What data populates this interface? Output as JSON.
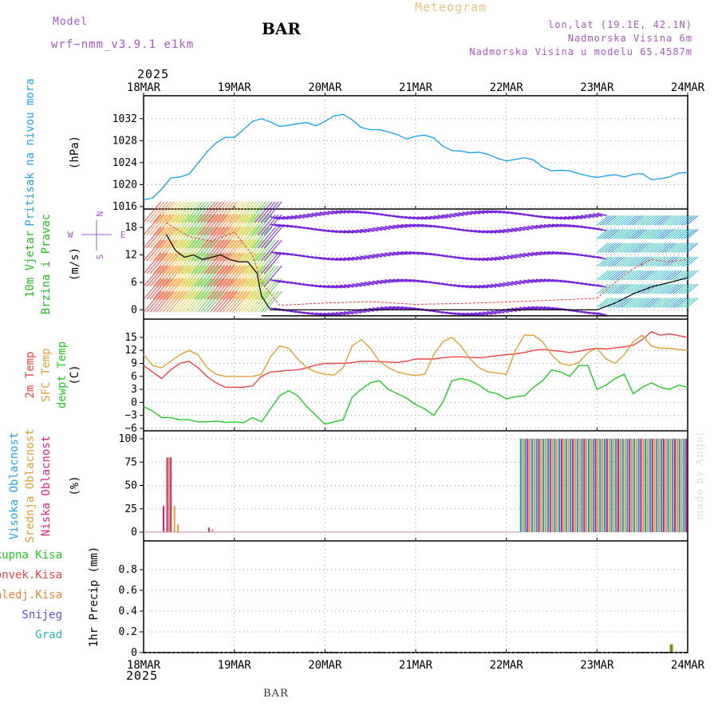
{
  "header": {
    "meteogram": "Meteogram",
    "station": "BAR",
    "model_label": "Model",
    "model_name": "wrf−nmm_v3.9.1  e1km",
    "lonlat": "lon,lat (19.1E, 42.1N)",
    "elevation": "Nadmorska Visina 6m",
    "model_elevation": "Nadmorska Visina u modelu 65.4587m",
    "year_top": "2025",
    "year_bottom": "2025",
    "footer_station": "BAR",
    "credit": "made by Angel"
  },
  "colors": {
    "pressure": "#1ea7e6",
    "temp2m": "#ee4444",
    "sfc": "#e0a030",
    "dewpt": "#22cc22",
    "high_cloud": "#1a9ad6",
    "mid_cloud": "#e0a030",
    "low_cloud": "#cc2288",
    "wind_label": "#22bb22",
    "cloud_label_high": "#1ea7e6",
    "cloud_label_mid": "#e0a030",
    "cloud_label_low": "#dd2288",
    "model_color": "#aa55cc"
  },
  "chart_data": [
    {
      "type": "line",
      "panel": "pressure",
      "ylabel_lines": [
        "Pritisak na nivou mora"
      ],
      "unit": "(hPa)",
      "x_ticks": [
        "18MAR",
        "19MAR",
        "20MAR",
        "21MAR",
        "22MAR",
        "23MAR",
        "24MAR"
      ],
      "ylim": [
        1016,
        1034
      ],
      "y_ticks": [
        1016,
        1020,
        1024,
        1028,
        1032
      ],
      "grid": true,
      "series": [
        {
          "color_key": "pressure",
          "x": [
            0,
            0.1,
            0.2,
            0.3,
            0.4,
            0.5,
            0.6,
            0.7,
            0.8,
            0.9,
            1.0,
            1.1,
            1.2,
            1.3,
            1.4,
            1.5,
            1.6,
            1.7,
            1.8,
            1.9,
            2.0,
            2.1,
            2.2,
            2.3,
            2.4,
            2.5,
            2.6,
            2.7,
            2.8,
            2.9,
            3.0,
            3.1,
            3.2,
            3.3,
            3.4,
            3.5,
            3.6,
            3.7,
            3.8,
            3.9,
            4.0,
            4.1,
            4.2,
            4.3,
            4.4,
            4.5,
            4.6,
            4.7,
            4.8,
            4.9,
            5.0,
            5.1,
            5.2,
            5.3,
            5.4,
            5.5,
            5.6,
            5.7,
            5.8,
            5.9,
            6.0
          ],
          "values": [
            1017.2,
            1017.6,
            1019.2,
            1021.2,
            1021.4,
            1021.9,
            1023.9,
            1026.0,
            1027.6,
            1028.6,
            1028.6,
            1030.0,
            1031.5,
            1032.0,
            1031.4,
            1030.6,
            1030.8,
            1031.1,
            1031.3,
            1030.7,
            1031.5,
            1032.5,
            1032.8,
            1031.8,
            1030.4,
            1030.0,
            1030.0,
            1029.6,
            1029.1,
            1028.3,
            1028.8,
            1029.0,
            1028.5,
            1027.0,
            1026.2,
            1026.1,
            1025.8,
            1025.9,
            1025.5,
            1024.8,
            1024.3,
            1024.6,
            1024.9,
            1024.5,
            1023.2,
            1022.5,
            1022.6,
            1022.5,
            1022.0,
            1021.6,
            1021.3,
            1021.6,
            1021.8,
            1021.4,
            1021.9,
            1022.0,
            1020.9,
            1021.1,
            1021.4,
            1022.1,
            1022.2
          ]
        }
      ]
    },
    {
      "type": "line",
      "panel": "wind",
      "ylabel_lines": [
        "10m Vjetar",
        "Brzina i Pravac"
      ],
      "unit": "(m/s)",
      "compass": {
        "n": "N",
        "s": "S",
        "e": "E",
        "w": "W"
      },
      "ylim": [
        -1.5,
        21.5
      ],
      "y_ticks": [
        0,
        6,
        12,
        18
      ],
      "grid": true,
      "series": [
        {
          "name": "speed",
          "x": [
            0.25,
            0.35,
            0.45,
            0.55,
            0.65,
            0.75,
            0.85,
            0.95,
            1.05,
            1.15,
            1.25,
            1.3,
            1.4,
            1.6,
            2.0,
            2.6,
            3.0,
            3.5,
            4.0,
            4.5,
            5.0,
            5.2,
            5.4,
            5.6,
            5.8,
            6.0
          ],
          "values": [
            16.5,
            13,
            11.5,
            12,
            11,
            11.5,
            12,
            11,
            10.5,
            10.5,
            8,
            3,
            0,
            0,
            0,
            0,
            0,
            0,
            0,
            0,
            0,
            1.5,
            3.5,
            5,
            6,
            7
          ]
        },
        {
          "name": "gust",
          "x": [
            0.25,
            0.5,
            0.75,
            1.0,
            1.2,
            1.3,
            1.5,
            2.0,
            2.5,
            3.0,
            3.5,
            4.0,
            4.5,
            5.0,
            5.2,
            5.4,
            5.6,
            5.8,
            6.0
          ],
          "values": [
            19,
            16,
            15,
            17,
            12,
            6,
            1,
            1.5,
            1.8,
            1.2,
            1.4,
            1.7,
            2.1,
            2.5,
            6,
            9,
            11,
            10.5,
            11
          ]
        }
      ]
    },
    {
      "type": "line",
      "panel": "temperature",
      "ylabel_lines": [
        "2m Temp",
        "SFC Temp",
        "dewpt Temp"
      ],
      "unit": "(C)",
      "ylim": [
        -6,
        17
      ],
      "y_ticks": [
        -6,
        -3,
        0,
        3,
        6,
        9,
        12,
        15
      ],
      "grid": true,
      "series": [
        {
          "name": "2m Temp",
          "color_key": "temp2m",
          "x": [
            0,
            0.1,
            0.2,
            0.3,
            0.4,
            0.5,
            0.6,
            0.7,
            0.8,
            0.9,
            1.0,
            1.1,
            1.2,
            1.3,
            1.4,
            1.5,
            1.6,
            1.7,
            1.8,
            1.9,
            2.0,
            2.1,
            2.2,
            2.3,
            2.4,
            2.5,
            2.6,
            2.7,
            2.8,
            2.9,
            3.0,
            3.1,
            3.2,
            3.3,
            3.4,
            3.5,
            3.6,
            3.7,
            3.8,
            3.9,
            4.0,
            4.1,
            4.2,
            4.3,
            4.4,
            4.5,
            4.6,
            4.7,
            4.8,
            4.9,
            5.0,
            5.1,
            5.2,
            5.3,
            5.4,
            5.5,
            5.6,
            5.7,
            5.8,
            5.9,
            6.0
          ],
          "values": [
            8.5,
            7,
            5.5,
            7.5,
            9,
            9.5,
            8,
            6,
            4.5,
            3.5,
            3.5,
            3.5,
            3.8,
            6,
            7,
            7.2,
            7.4,
            7.5,
            8,
            8.6,
            9,
            9,
            9,
            9.2,
            9.5,
            9.5,
            9.4,
            9.3,
            9.2,
            9.5,
            10,
            10,
            10,
            10.3,
            10.5,
            10.5,
            10.4,
            10.3,
            10.5,
            10.8,
            11,
            11.2,
            11.5,
            12,
            12.2,
            12,
            11.8,
            11.5,
            11.8,
            12.2,
            12.5,
            12.3,
            12.6,
            12.8,
            13.2,
            14.5,
            16.3,
            15.5,
            15.8,
            15.4,
            15
          ]
        },
        {
          "name": "SFC Temp",
          "color_key": "sfc",
          "x": [
            0,
            0.1,
            0.2,
            0.3,
            0.4,
            0.5,
            0.6,
            0.7,
            0.8,
            0.9,
            1.0,
            1.1,
            1.2,
            1.3,
            1.4,
            1.5,
            1.6,
            1.7,
            1.8,
            1.9,
            2.0,
            2.1,
            2.2,
            2.3,
            2.4,
            2.5,
            2.6,
            2.7,
            2.8,
            2.9,
            3.0,
            3.1,
            3.2,
            3.3,
            3.4,
            3.5,
            3.6,
            3.7,
            3.8,
            3.9,
            4.0,
            4.1,
            4.2,
            4.3,
            4.4,
            4.5,
            4.6,
            4.7,
            4.8,
            4.9,
            5.0,
            5.1,
            5.2,
            5.3,
            5.4,
            5.5,
            5.6,
            5.7,
            5.8,
            5.9,
            6.0
          ],
          "values": [
            11,
            8.5,
            8,
            9.5,
            11,
            12,
            11,
            8,
            6.5,
            6,
            6,
            6,
            6,
            6.5,
            10.5,
            13,
            12.5,
            10,
            8,
            7,
            6.5,
            6.3,
            8,
            13,
            14.5,
            12.5,
            9.5,
            8,
            7,
            6.5,
            6.2,
            6.5,
            11,
            14,
            15,
            13,
            10,
            8,
            7,
            6.8,
            6.5,
            12,
            15.5,
            15.5,
            14,
            11,
            9,
            8.5,
            9.2,
            11.5,
            12.5,
            10,
            9,
            11,
            14,
            15.5,
            13,
            12.5,
            12.5,
            12.2,
            12
          ]
        },
        {
          "name": "dewpt Temp",
          "color_key": "dewpt",
          "x": [
            0,
            0.1,
            0.2,
            0.3,
            0.4,
            0.5,
            0.6,
            0.7,
            0.8,
            0.9,
            1.0,
            1.1,
            1.2,
            1.3,
            1.4,
            1.5,
            1.6,
            1.7,
            1.8,
            1.9,
            2.0,
            2.1,
            2.2,
            2.3,
            2.4,
            2.5,
            2.6,
            2.7,
            2.8,
            2.9,
            3.0,
            3.1,
            3.2,
            3.3,
            3.4,
            3.5,
            3.6,
            3.7,
            3.8,
            3.9,
            4.0,
            4.1,
            4.2,
            4.3,
            4.4,
            4.5,
            4.6,
            4.7,
            4.8,
            4.9,
            5.0,
            5.1,
            5.2,
            5.3,
            5.4,
            5.5,
            5.6,
            5.7,
            5.8,
            5.9,
            6.0
          ],
          "values": [
            -1,
            -2,
            -3.5,
            -3.5,
            -4,
            -4,
            -4.5,
            -4.5,
            -4.3,
            -4.6,
            -4.5,
            -4.7,
            -3.5,
            -4.5,
            -1.5,
            1.5,
            2.7,
            1.5,
            -1,
            -3,
            -5,
            -4.5,
            -4,
            1.2,
            3,
            4.5,
            5,
            3,
            2,
            1,
            -0.5,
            -1.5,
            -3,
            0,
            5,
            5.5,
            5,
            4,
            2.5,
            2,
            0.8,
            1.3,
            1.5,
            3.5,
            5,
            7.5,
            7,
            6,
            8.5,
            8.5,
            3,
            4,
            5.5,
            6.5,
            2,
            3.5,
            4.5,
            3.5,
            3,
            4,
            3.5
          ]
        }
      ]
    },
    {
      "type": "bar",
      "panel": "cloud",
      "ylabel_lines": [
        "Visoka Oblacnost",
        "Srednja Oblacnost",
        "Niska Oblacnost"
      ],
      "unit": "(%)",
      "ylim": [
        0,
        100
      ],
      "y_ticks": [
        0,
        25,
        50,
        75,
        100
      ],
      "grid": true,
      "series": [
        {
          "name": "Niska Oblacnost",
          "color_key": "low_cloud",
          "x": [
            0.22,
            0.26,
            0.3,
            0.72
          ],
          "values": [
            28,
            80,
            80,
            5
          ]
        },
        {
          "name": "Srednja Oblacnost",
          "color_key": "mid_cloud",
          "x": [
            0.28,
            0.34,
            0.38,
            0.76
          ],
          "values": [
            80,
            28,
            8,
            3
          ]
        },
        {
          "name": "Visoka Oblacnost",
          "color_key": "high_cloud",
          "range_x": [
            4.15,
            6.0
          ],
          "value": 100
        }
      ]
    },
    {
      "type": "bar",
      "panel": "precip",
      "ylabel_lines": [
        "1hr Precip (mm)"
      ],
      "legend": [
        "Ukupna Kisa",
        "Konvek.Kisa",
        "Zaledj.Kisa",
        "Snijeg",
        "Grad"
      ],
      "ylim": [
        0,
        1.0
      ],
      "y_ticks": [
        0,
        0.2,
        0.4,
        0.6,
        0.8
      ],
      "grid": true,
      "series": [
        {
          "name": "Ukupna Kisa",
          "x": [
            5.82
          ],
          "values": [
            0.08
          ]
        }
      ]
    }
  ]
}
